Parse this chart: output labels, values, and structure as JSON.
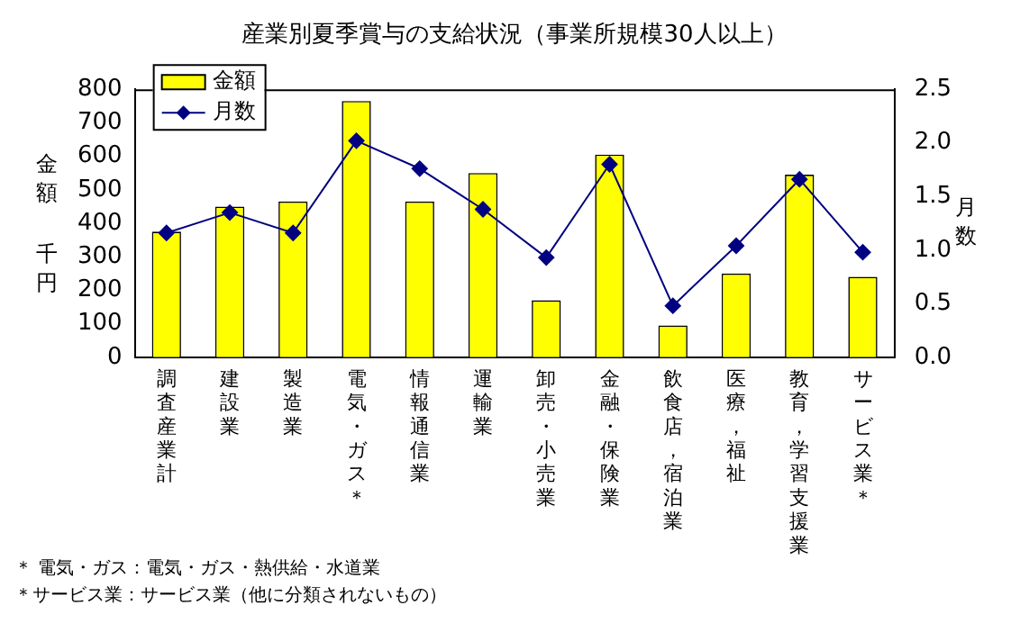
{
  "chart_data": {
    "type": "bar",
    "title": "産業別夏季賞与の支給状況（事業所規模30人以上）",
    "categories": [
      "調査産業計",
      "建設業",
      "製造業",
      "電気・ガス＊",
      "情報通信業",
      "運輸業",
      "卸売・小売業",
      "金融・保険業",
      "飲食店，宿泊業",
      "医療，福祉",
      "教育，学習支援業",
      "サービス業＊"
    ],
    "series": [
      {
        "name": "金額",
        "color": "#ffff00",
        "values": [
          375,
          450,
          465,
          765,
          465,
          550,
          170,
          605,
          95,
          250,
          545,
          240
        ]
      },
      {
        "name": "月数",
        "type": "line",
        "axis": "y2",
        "color": "#000080",
        "values": [
          1.16,
          1.35,
          1.16,
          2.02,
          1.76,
          1.38,
          0.93,
          1.8,
          0.48,
          1.04,
          1.66,
          0.98
        ]
      }
    ],
    "ylabel": "金額千円",
    "y2label": "月数",
    "ylim": [
      0,
      800
    ],
    "yticks": [
      0,
      100,
      200,
      300,
      400,
      500,
      600,
      700,
      800
    ],
    "y2lim": [
      0,
      2.5
    ],
    "y2ticks": [
      {
        "value": 0,
        "label": "0.0"
      },
      {
        "value": 0.5,
        "label": "0.5"
      },
      {
        "value": 1,
        "label": "1.0"
      },
      {
        "value": 1.5,
        "label": "1.5"
      },
      {
        "value": 2,
        "label": "2.0"
      },
      {
        "value": 2.5,
        "label": "2.5"
      }
    ],
    "legend": "top left",
    "marker": "diamond",
    "grid": false,
    "annotations": [
      "＊ 電気・ガス：電気・ガス・熱供給・水道業",
      "＊サービス業：サービス業（他に分類されないもの）"
    ]
  }
}
